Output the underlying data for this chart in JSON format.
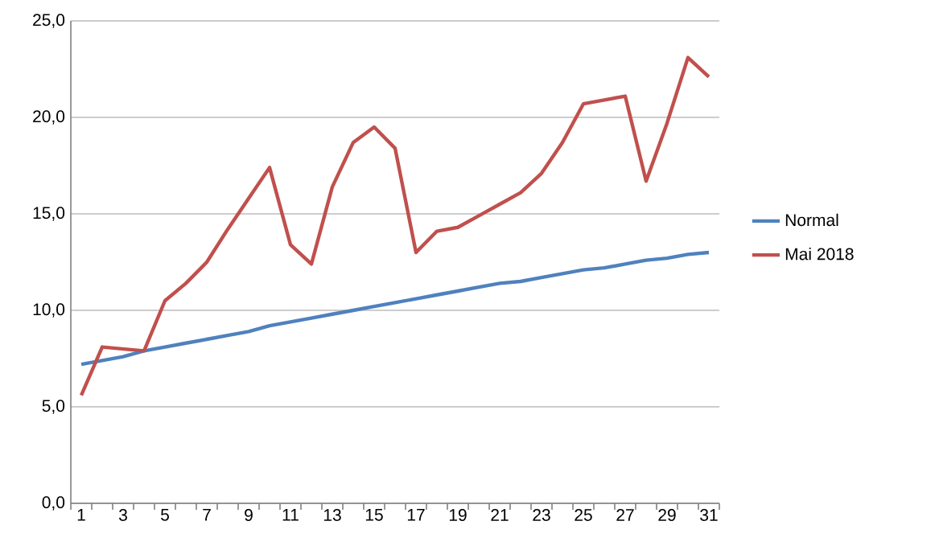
{
  "chart_data": {
    "type": "line",
    "x": [
      1,
      2,
      3,
      4,
      5,
      6,
      7,
      8,
      9,
      10,
      11,
      12,
      13,
      14,
      15,
      16,
      17,
      18,
      19,
      20,
      21,
      22,
      23,
      24,
      25,
      26,
      27,
      28,
      29,
      30,
      31
    ],
    "series": [
      {
        "name": "Normal",
        "color": "#4f81bd",
        "values": [
          7.2,
          7.4,
          7.6,
          7.9,
          8.1,
          8.3,
          8.5,
          8.7,
          8.9,
          9.2,
          9.4,
          9.6,
          9.8,
          10.0,
          10.2,
          10.4,
          10.6,
          10.8,
          11.0,
          11.2,
          11.4,
          11.5,
          11.7,
          11.9,
          12.1,
          12.2,
          12.4,
          12.6,
          12.7,
          12.9,
          13.0
        ]
      },
      {
        "name": "Mai 2018",
        "color": "#c0504d",
        "values": [
          5.6,
          8.1,
          8.0,
          7.9,
          10.5,
          11.4,
          12.5,
          14.2,
          15.8,
          17.4,
          13.4,
          12.4,
          16.4,
          18.7,
          19.5,
          18.4,
          13.0,
          14.1,
          14.3,
          14.9,
          15.5,
          16.1,
          17.1,
          18.7,
          20.7,
          20.9,
          21.1,
          16.7,
          19.7,
          23.1,
          22.1
        ]
      }
    ],
    "xlim": [
      0.5,
      31.5
    ],
    "xticks": [
      {
        "value": 0.5,
        "label": null
      },
      1,
      {
        "value": 1.5,
        "label": null
      },
      {
        "value": 2.5,
        "label": null
      },
      3,
      {
        "value": 3.5,
        "label": null
      },
      {
        "value": 4.5,
        "label": null
      },
      5,
      {
        "value": 5.5,
        "label": null
      },
      {
        "value": 6.5,
        "label": null
      },
      7,
      {
        "value": 7.5,
        "label": null
      },
      {
        "value": 8.5,
        "label": null
      },
      9,
      {
        "value": 9.5,
        "label": null
      },
      {
        "value": 10.5,
        "label": null
      },
      11,
      {
        "value": 11.5,
        "label": null
      },
      {
        "value": 12.5,
        "label": null
      },
      13,
      {
        "value": 13.5,
        "label": null
      },
      {
        "value": 14.5,
        "label": null
      },
      15,
      {
        "value": 15.5,
        "label": null
      },
      {
        "value": 16.5,
        "label": null
      },
      17,
      {
        "value": 17.5,
        "label": null
      },
      {
        "value": 18.5,
        "label": null
      },
      19,
      {
        "value": 19.5,
        "label": null
      },
      {
        "value": 20.5,
        "label": null
      },
      21,
      {
        "value": 21.5,
        "label": null
      },
      {
        "value": 22.5,
        "label": null
      },
      23,
      {
        "value": 23.5,
        "label": null
      },
      {
        "value": 24.5,
        "label": null
      },
      25,
      {
        "value": 25.5,
        "label": null
      },
      {
        "value": 26.5,
        "label": null
      },
      27,
      {
        "value": 27.5,
        "label": null
      },
      {
        "value": 28.5,
        "label": null
      },
      29,
      {
        "value": 29.5,
        "label": null
      },
      {
        "value": 30.5,
        "label": null
      },
      31,
      {
        "value": 31.5,
        "label": null
      }
    ],
    "ylim": [
      0,
      25
    ],
    "yticks": [
      {
        "value": 0,
        "label": "0,0"
      },
      {
        "value": 5,
        "label": "5,0"
      },
      {
        "value": 10,
        "label": "10,0"
      },
      {
        "value": 15,
        "label": "15,0"
      },
      {
        "value": 20,
        "label": "20,0"
      },
      {
        "value": 25,
        "label": "25,0"
      }
    ],
    "grid": "y",
    "legend": "right",
    "marker": "none",
    "line_style": "solid"
  }
}
